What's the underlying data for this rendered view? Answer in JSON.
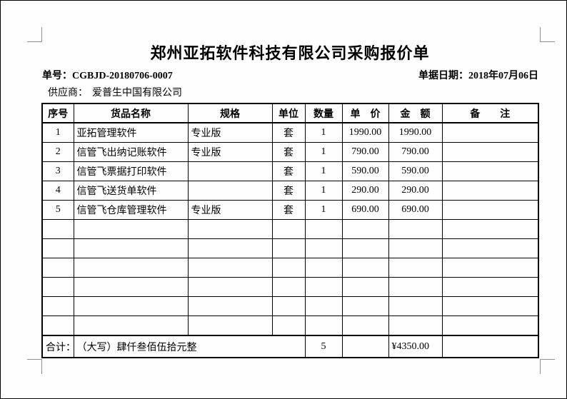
{
  "colors": {
    "page_background": "#fefefe",
    "border": "#000000",
    "crop_mark": "#909090",
    "text": "#000000"
  },
  "header": {
    "title": "郑州亚拓软件科技有限公司采购报价单",
    "order_no_label": "单号：",
    "order_no_value": "CGBJD-20180706-0007",
    "date_label": "单据日期：",
    "date_value": "2018年07月06日",
    "supplier_label": "供应商：",
    "supplier_value": "爱普生中国有限公司"
  },
  "table": {
    "headers": [
      "序号",
      "货品名称",
      "规格",
      "单位",
      "数量",
      "单　价",
      "金　额",
      "备　　注"
    ],
    "rows": [
      [
        "1",
        "亚拓管理软件",
        "专业版",
        "套",
        "1",
        "1990.00",
        "1990.00",
        ""
      ],
      [
        "2",
        "信管飞出纳记账软件",
        "专业版",
        "套",
        "1",
        "790.00",
        "790.00",
        ""
      ],
      [
        "3",
        "信管飞票据打印软件",
        "",
        "套",
        "1",
        "590.00",
        "590.00",
        ""
      ],
      [
        "4",
        "信管飞送货单软件",
        "",
        "套",
        "1",
        "290.00",
        "290.00",
        ""
      ],
      [
        "5",
        "信管飞仓库管理软件",
        "专业版",
        "套",
        "1",
        "690.00",
        "690.00",
        ""
      ]
    ],
    "empty_row_count": 6,
    "total": {
      "label": "合计：",
      "amount_in_words": "（大写）肆仟叁佰伍拾元整",
      "total_quantity": "5",
      "unit_price_blank": "",
      "total_amount": "¥4350.00",
      "remark_blank": ""
    }
  }
}
